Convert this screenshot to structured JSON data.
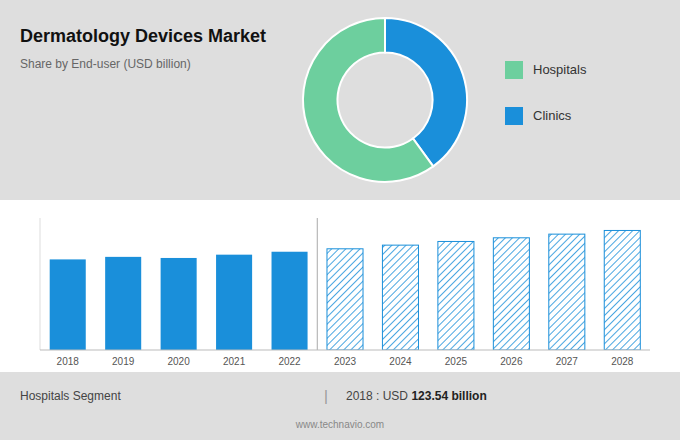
{
  "chart_data": [
    {
      "type": "pie",
      "title": "Dermatology Devices Market",
      "subtitle": "Share by End-user (USD billion)",
      "categories": [
        "Clinics",
        "Hospitals"
      ],
      "values": [
        40,
        60
      ],
      "colors": [
        "#1a8fda",
        "#6dcf9e"
      ],
      "legend": "right"
    },
    {
      "type": "bar",
      "categories": [
        "2018",
        "2019",
        "2020",
        "2021",
        "2022",
        "2023",
        "2024",
        "2025",
        "2026",
        "2027",
        "2028"
      ],
      "series": [
        {
          "color": "#1a8fda",
          "values": [
            123.54,
            127.0,
            125.5,
            130.0,
            134.0,
            null,
            null,
            null,
            null,
            null,
            null
          ]
        },
        {
          "color": "#1a8fda",
          "line_style": "hatched",
          "values": [
            null,
            null,
            null,
            null,
            null,
            138.0,
            143.0,
            148.0,
            153.0,
            158.0,
            163.0
          ]
        }
      ],
      "ylim": [
        0,
        180
      ],
      "yticks": [],
      "grid": false,
      "tick_labels": "x",
      "annotations": [
        "Hospitals Segment",
        "|",
        "2018 : USD ",
        "123.54 billion",
        "www.technavio.com"
      ]
    }
  ]
}
